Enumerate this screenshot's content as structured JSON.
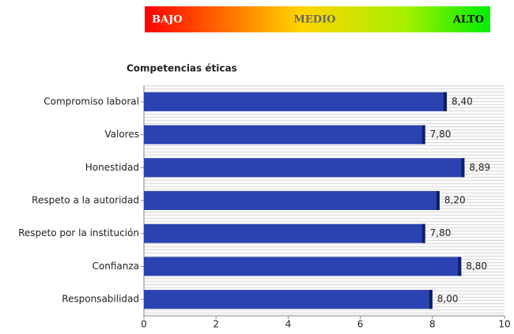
{
  "chart_data": {
    "type": "hbar",
    "title": "Competencias éticas",
    "scale_labels": [
      "BAJO",
      "MEDIO",
      "ALTO"
    ],
    "categories": [
      "Compromiso laboral",
      "Valores",
      "Honestidad",
      "Respeto a la autoridad",
      "Respeto por la institución",
      "Confianza",
      "Responsabilidad"
    ],
    "values": [
      8.4,
      7.8,
      8.89,
      8.2,
      7.8,
      8.8,
      8.0
    ],
    "value_labels": [
      "8,40",
      "7,80",
      "8,89",
      "8,20",
      "7,80",
      "8,80",
      "8,00"
    ],
    "color": "#2a43b0",
    "xlim": [
      0,
      10
    ],
    "xticks": [
      0,
      2,
      4,
      6,
      8,
      10
    ],
    "grid": true
  }
}
